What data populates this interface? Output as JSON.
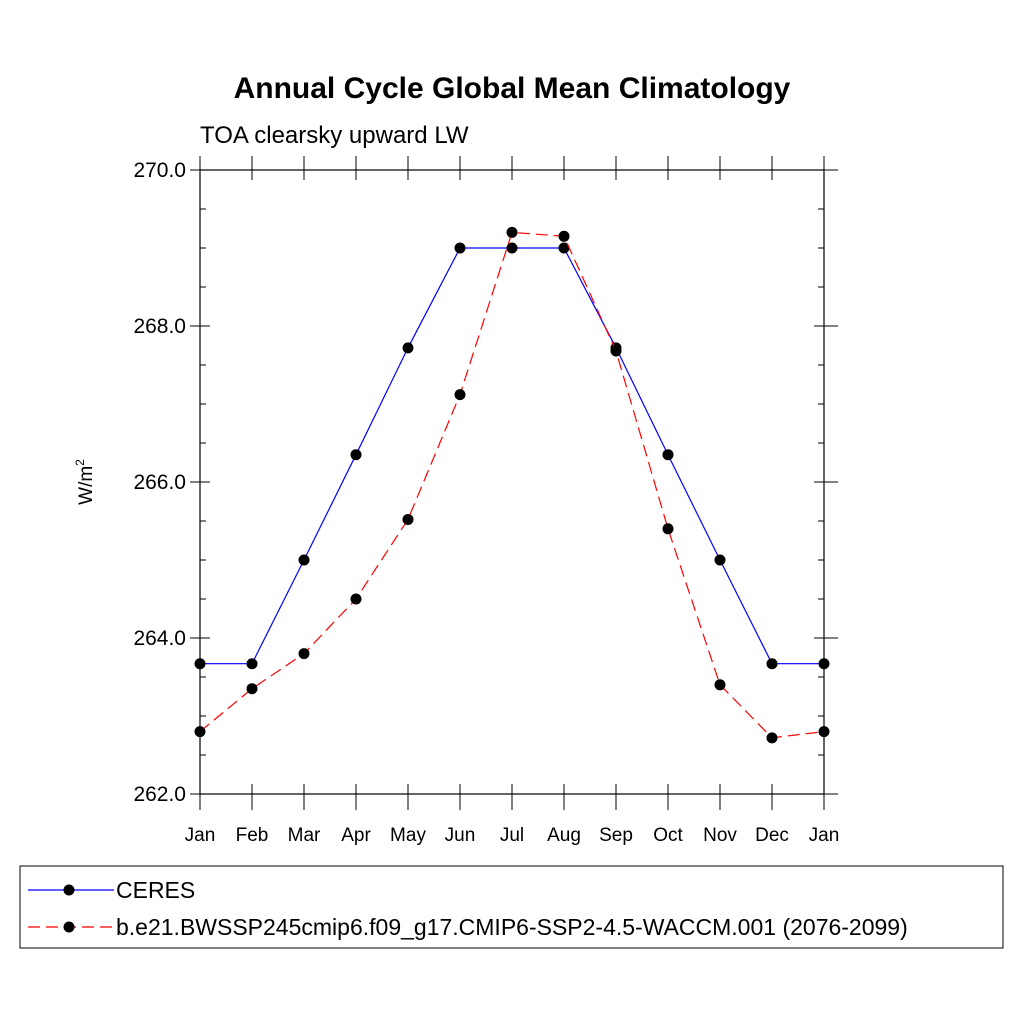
{
  "chart_data": {
    "type": "line",
    "title": "Annual Cycle Global Mean Climatology",
    "subtitle": "TOA clearsky upward LW",
    "ylabel": "W/m",
    "ylabel_superscript": "2",
    "xlabel": "",
    "categories": [
      "Jan",
      "Feb",
      "Mar",
      "Apr",
      "May",
      "Jun",
      "Jul",
      "Aug",
      "Sep",
      "Oct",
      "Nov",
      "Dec",
      "Jan"
    ],
    "yticks": [
      "262.0",
      "264.0",
      "266.0",
      "268.0",
      "270.0"
    ],
    "ylim": [
      262.0,
      270.0
    ],
    "grid": false,
    "legend_position": "bottom",
    "series": [
      {
        "name": "CERES",
        "color": "#0000ff",
        "line_style": "solid",
        "marker": "filled-circle",
        "values": [
          263.67,
          263.67,
          265.0,
          266.35,
          267.72,
          269.0,
          269.0,
          269.0,
          267.72,
          266.35,
          265.0,
          263.67,
          263.67
        ]
      },
      {
        "name": "b.e21.BWSSP245cmip6.f09_g17.CMIP6-SSP2-4.5-WACCM.001 (2076-2099)",
        "color": "#ff0000",
        "line_style": "dashed",
        "marker": "filled-circle",
        "values": [
          262.8,
          263.35,
          263.8,
          264.5,
          265.52,
          267.12,
          269.2,
          269.15,
          267.68,
          265.4,
          263.4,
          262.72,
          262.8
        ]
      }
    ]
  }
}
